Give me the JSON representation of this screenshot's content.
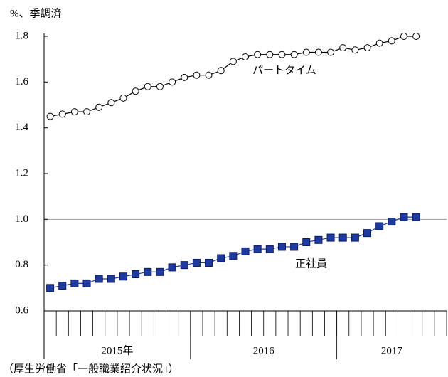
{
  "chart_data": {
    "type": "line",
    "y_axis_label": "%、季調済",
    "source": "（厚生労働省「一般職業紹介状況」）",
    "categories": [
      null,
      null,
      null,
      null,
      null,
      null,
      null,
      null,
      null,
      null,
      null,
      null,
      null,
      null,
      null,
      null,
      null,
      null,
      null,
      null,
      null,
      null,
      null,
      null,
      null,
      null,
      null,
      null,
      null,
      null,
      null,
      null,
      null
    ],
    "x_groups": [
      {
        "label": "2015年",
        "span": 12
      },
      {
        "label": "2016",
        "span": 12
      },
      {
        "label": "2017",
        "span": 9
      }
    ],
    "series": [
      {
        "name": "パートタイム",
        "color": "#000000",
        "marker": "circle",
        "values": [
          1.45,
          1.46,
          1.47,
          1.47,
          1.49,
          1.51,
          1.53,
          1.56,
          1.58,
          1.58,
          1.6,
          1.62,
          1.63,
          1.63,
          1.65,
          1.69,
          1.71,
          1.72,
          1.72,
          1.72,
          1.72,
          1.73,
          1.73,
          1.73,
          1.75,
          1.74,
          1.75,
          1.77,
          1.78,
          1.8,
          1.8,
          null,
          null
        ]
      },
      {
        "name": "正社員",
        "color": "#1f3a9e",
        "marker": "square",
        "values": [
          0.7,
          0.71,
          0.72,
          0.72,
          0.74,
          0.74,
          0.75,
          0.76,
          0.77,
          0.77,
          0.79,
          0.8,
          0.81,
          0.81,
          0.83,
          0.84,
          0.86,
          0.87,
          0.87,
          0.88,
          0.88,
          0.9,
          0.91,
          0.92,
          0.92,
          0.92,
          0.94,
          0.97,
          0.99,
          1.01,
          1.01,
          null,
          null
        ]
      }
    ],
    "ylim": [
      0.6,
      1.8
    ],
    "yticks": [
      0.6,
      0.8,
      {
        "value": 1,
        "label": "1.0"
      },
      1.2,
      1.4,
      1.6,
      1.8
    ],
    "hlines": [
      1
    ]
  }
}
